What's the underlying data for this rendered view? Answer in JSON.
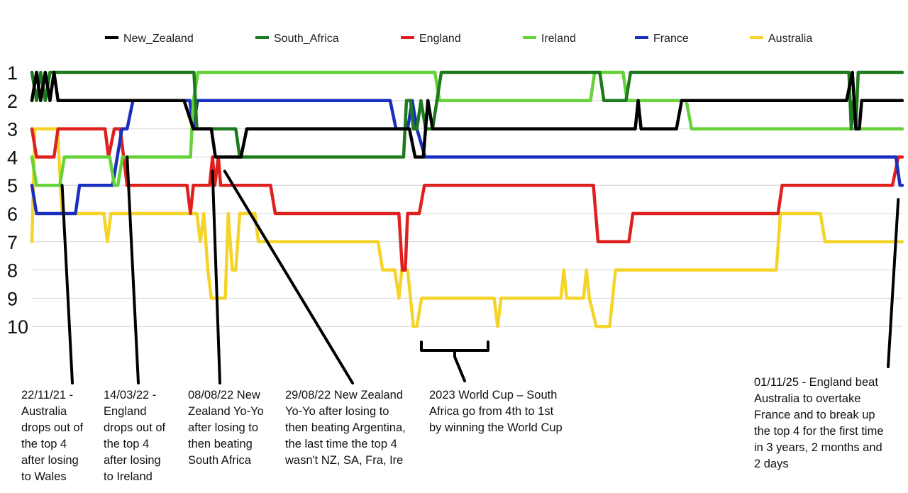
{
  "chart_data": {
    "type": "line",
    "title": "",
    "xlabel": "",
    "ylabel": "",
    "y_inverted": true,
    "ylim": [
      1,
      10
    ],
    "y_ticks": [
      "1",
      "2",
      "3",
      "4",
      "5",
      "6",
      "7",
      "8",
      "9",
      "10"
    ],
    "x_range": [
      "2021-10-01",
      "2025-11-08"
    ],
    "grid": "horizontal",
    "legend_position": "top",
    "series": [
      {
        "name": "New_Zealand",
        "color": "#000000",
        "points": [
          [
            "2021-10-01",
            2
          ],
          [
            "2021-10-09",
            1
          ],
          [
            "2021-10-16",
            2
          ],
          [
            "2021-10-24",
            1
          ],
          [
            "2021-11-01",
            2
          ],
          [
            "2021-11-08",
            1
          ],
          [
            "2021-11-15",
            2
          ],
          [
            "2022-06-20",
            2
          ],
          [
            "2022-07-06",
            3
          ],
          [
            "2022-08-06",
            3
          ],
          [
            "2022-08-13",
            4
          ],
          [
            "2022-09-26",
            4
          ],
          [
            "2022-10-06",
            3
          ],
          [
            "2023-07-13",
            3
          ],
          [
            "2023-07-23",
            4
          ],
          [
            "2023-08-06",
            4
          ],
          [
            "2023-08-14",
            2
          ],
          [
            "2023-08-22",
            3
          ],
          [
            "2024-08-05",
            3
          ],
          [
            "2024-08-10",
            2
          ],
          [
            "2024-08-15",
            3
          ],
          [
            "2024-10-15",
            3
          ],
          [
            "2024-10-24",
            2
          ],
          [
            "2025-08-04",
            2
          ],
          [
            "2025-08-14",
            1
          ],
          [
            "2025-08-20",
            3
          ],
          [
            "2025-08-26",
            3
          ],
          [
            "2025-08-30",
            2
          ],
          [
            "2025-11-08",
            2
          ]
        ]
      },
      {
        "name": "South_Africa",
        "color": "#1d7a1d",
        "points": [
          [
            "2021-10-01",
            1
          ],
          [
            "2021-10-09",
            2
          ],
          [
            "2021-10-16",
            1
          ],
          [
            "2021-10-24",
            2
          ],
          [
            "2021-11-01",
            1
          ],
          [
            "2022-07-07",
            1
          ],
          [
            "2022-07-12",
            3
          ],
          [
            "2022-09-17",
            3
          ],
          [
            "2022-09-24",
            4
          ],
          [
            "2023-07-03",
            4
          ],
          [
            "2023-07-08",
            2
          ],
          [
            "2023-07-15",
            2
          ],
          [
            "2023-07-20",
            3
          ],
          [
            "2023-07-26",
            3
          ],
          [
            "2023-08-02",
            2
          ],
          [
            "2023-08-10",
            3
          ],
          [
            "2023-08-22",
            3
          ],
          [
            "2023-09-06",
            1
          ],
          [
            "2024-06-05",
            1
          ],
          [
            "2024-06-12",
            2
          ],
          [
            "2024-07-20",
            2
          ],
          [
            "2024-07-28",
            1
          ],
          [
            "2025-08-08",
            1
          ],
          [
            "2025-08-12",
            3
          ],
          [
            "2025-08-16",
            2
          ],
          [
            "2025-08-20",
            3
          ],
          [
            "2025-08-24",
            1
          ],
          [
            "2025-11-08",
            1
          ]
        ]
      },
      {
        "name": "England",
        "color": "#e0201e",
        "points": [
          [
            "2021-10-01",
            3
          ],
          [
            "2021-10-09",
            4
          ],
          [
            "2021-11-08",
            4
          ],
          [
            "2021-11-15",
            3
          ],
          [
            "2022-02-04",
            3
          ],
          [
            "2022-02-10",
            4
          ],
          [
            "2022-02-20",
            3
          ],
          [
            "2022-03-02",
            3
          ],
          [
            "2022-03-14",
            5
          ],
          [
            "2022-06-25",
            5
          ],
          [
            "2022-07-01",
            6
          ],
          [
            "2022-07-06",
            5
          ],
          [
            "2022-08-03",
            5
          ],
          [
            "2022-08-08",
            4
          ],
          [
            "2022-08-12",
            5
          ],
          [
            "2022-08-18",
            4
          ],
          [
            "2022-08-22",
            5
          ],
          [
            "2022-11-16",
            5
          ],
          [
            "2022-11-24",
            6
          ],
          [
            "2023-06-25",
            6
          ],
          [
            "2023-07-01",
            8
          ],
          [
            "2023-07-06",
            8
          ],
          [
            "2023-07-10",
            6
          ],
          [
            "2023-07-30",
            6
          ],
          [
            "2023-08-08",
            5
          ],
          [
            "2024-05-25",
            5
          ],
          [
            "2024-06-02",
            7
          ],
          [
            "2024-07-25",
            7
          ],
          [
            "2024-08-01",
            6
          ],
          [
            "2025-04-08",
            6
          ],
          [
            "2025-04-15",
            5
          ],
          [
            "2025-10-22",
            5
          ],
          [
            "2025-11-01",
            4
          ],
          [
            "2025-11-08",
            4
          ]
        ]
      },
      {
        "name": "Ireland",
        "color": "#66d23a",
        "points": [
          [
            "2021-10-01",
            4
          ],
          [
            "2021-10-09",
            5
          ],
          [
            "2021-11-18",
            5
          ],
          [
            "2021-11-26",
            4
          ],
          [
            "2022-02-12",
            4
          ],
          [
            "2022-02-20",
            5
          ],
          [
            "2022-02-26",
            5
          ],
          [
            "2022-03-06",
            4
          ],
          [
            "2022-07-01",
            4
          ],
          [
            "2022-07-06",
            2
          ],
          [
            "2022-07-14",
            1
          ],
          [
            "2023-08-26",
            1
          ],
          [
            "2023-09-03",
            2
          ],
          [
            "2024-05-20",
            2
          ],
          [
            "2024-05-27",
            1
          ],
          [
            "2024-07-15",
            1
          ],
          [
            "2024-07-22",
            2
          ],
          [
            "2024-11-01",
            2
          ],
          [
            "2024-11-10",
            3
          ],
          [
            "2025-11-08",
            3
          ]
        ]
      },
      {
        "name": "France",
        "color": "#1a2ec0",
        "points": [
          [
            "2021-10-01",
            5
          ],
          [
            "2021-10-09",
            6
          ],
          [
            "2021-12-15",
            6
          ],
          [
            "2021-12-22",
            5
          ],
          [
            "2022-02-17",
            5
          ],
          [
            "2022-02-25",
            4
          ],
          [
            "2022-03-05",
            3
          ],
          [
            "2022-03-14",
            3
          ],
          [
            "2022-03-24",
            2
          ],
          [
            "2022-06-30",
            2
          ],
          [
            "2022-07-06",
            3
          ],
          [
            "2022-07-13",
            2
          ],
          [
            "2023-06-10",
            2
          ],
          [
            "2023-06-20",
            3
          ],
          [
            "2023-07-10",
            3
          ],
          [
            "2023-07-18",
            2
          ],
          [
            "2023-07-26",
            3
          ],
          [
            "2023-08-09",
            4
          ],
          [
            "2025-10-28",
            4
          ],
          [
            "2025-11-04",
            5
          ],
          [
            "2025-11-08",
            5
          ]
        ]
      },
      {
        "name": "Australia",
        "color": "#f5d42a",
        "points": [
          [
            "2021-10-01",
            7
          ],
          [
            "2021-10-06",
            3
          ],
          [
            "2021-11-14",
            3
          ],
          [
            "2021-11-22",
            6
          ],
          [
            "2022-02-02",
            6
          ],
          [
            "2022-02-08",
            7
          ],
          [
            "2022-02-14",
            6
          ],
          [
            "2022-07-12",
            6
          ],
          [
            "2022-07-18",
            7
          ],
          [
            "2022-07-24",
            6
          ],
          [
            "2022-07-31",
            8
          ],
          [
            "2022-08-06",
            9
          ],
          [
            "2022-08-30",
            9
          ],
          [
            "2022-09-04",
            6
          ],
          [
            "2022-09-11",
            8
          ],
          [
            "2022-09-17",
            8
          ],
          [
            "2022-09-24",
            6
          ],
          [
            "2022-10-20",
            6
          ],
          [
            "2022-10-26",
            7
          ],
          [
            "2023-05-20",
            7
          ],
          [
            "2023-05-28",
            8
          ],
          [
            "2023-06-18",
            8
          ],
          [
            "2023-06-25",
            9
          ],
          [
            "2023-06-30",
            8
          ],
          [
            "2023-07-10",
            8
          ],
          [
            "2023-07-20",
            10
          ],
          [
            "2023-07-26",
            10
          ],
          [
            "2023-08-03",
            9
          ],
          [
            "2023-12-06",
            9
          ],
          [
            "2023-12-12",
            10
          ],
          [
            "2023-12-18",
            9
          ],
          [
            "2024-03-30",
            9
          ],
          [
            "2024-04-04",
            8
          ],
          [
            "2024-04-09",
            9
          ],
          [
            "2024-05-08",
            9
          ],
          [
            "2024-05-13",
            8
          ],
          [
            "2024-05-18",
            9
          ],
          [
            "2024-05-30",
            10
          ],
          [
            "2024-06-22",
            10
          ],
          [
            "2024-07-02",
            8
          ],
          [
            "2025-04-05",
            8
          ],
          [
            "2025-04-12",
            6
          ],
          [
            "2025-06-20",
            6
          ],
          [
            "2025-06-28",
            7
          ],
          [
            "2025-11-08",
            7
          ]
        ]
      }
    ],
    "annotations": [
      {
        "id": "ann1",
        "text": "22/11/21 -\nAustralia\ndrops out of\nthe top 4\nafter losing\nto Wales"
      },
      {
        "id": "ann2",
        "text": "14/03/22 -\nEngland\ndrops out of\nthe top 4\nafter losing\nto Ireland"
      },
      {
        "id": "ann3",
        "text": "08/08/22 New\nZealand Yo-Yo\nafter losing to\nthen beating\nSouth Africa"
      },
      {
        "id": "ann4",
        "text": "29/08/22 New Zealand\nYo-Yo after losing to\nthen beating Argentina,\nthe last time the top 4\nwasn't NZ, SA, Fra, Ire"
      },
      {
        "id": "ann5",
        "text": "2023 World Cup – South\nAfrica go from 4th to 1st\nby winning the World Cup"
      },
      {
        "id": "ann6",
        "text": "01/11/25 - England beat\nAustralia to overtake\nFrance and to break up\nthe top 4 for the first time\nin 3 years, 2 months and\n2 days"
      }
    ]
  }
}
